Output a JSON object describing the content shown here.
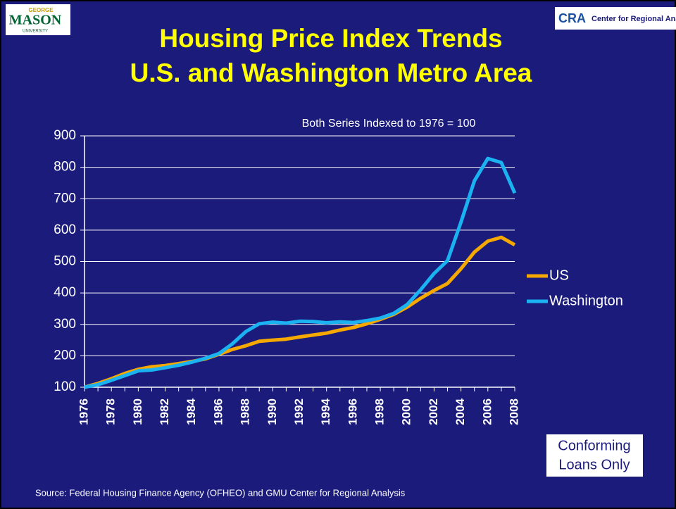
{
  "logos": {
    "left": [
      "GEORGE",
      "MASON",
      "UNIVERSITY"
    ],
    "right": [
      "CRA",
      "Center for Regional Analysis"
    ]
  },
  "chart_data": {
    "type": "line",
    "title": [
      "Housing Price Index Trends",
      "U.S. and Washington Metro Area"
    ],
    "annotation": "Both Series Indexed to 1976 = 100",
    "note": [
      "Conforming",
      "Loans Only"
    ],
    "source": "Source: Federal Housing Finance Agency (OFHEO) and GMU Center for Regional Analysis",
    "categories": [
      "1976",
      "1977",
      "1978",
      "1979",
      "1980",
      "1981",
      "1982",
      "1983",
      "1984",
      "1985",
      "1986",
      "1987",
      "1988",
      "1989",
      "1990",
      "1991",
      "1992",
      "1993",
      "1994",
      "1995",
      "1996",
      "1997",
      "1998",
      "1999",
      "2000",
      "2001",
      "2002",
      "2003",
      "2004",
      "2005",
      "2006",
      "2007",
      "2008"
    ],
    "category_labels_every": 2,
    "series": [
      {
        "name": "US",
        "color": "#f5a800",
        "values": [
          100,
          112,
          127,
          144,
          157,
          165,
          169,
          175,
          182,
          190,
          205,
          220,
          232,
          246,
          250,
          253,
          260,
          266,
          272,
          282,
          290,
          302,
          316,
          332,
          355,
          383,
          408,
          430,
          477,
          530,
          565,
          577,
          553
        ]
      },
      {
        "name": "Washington",
        "color": "#1ab2f0",
        "values": [
          100,
          108,
          122,
          137,
          152,
          155,
          162,
          170,
          180,
          192,
          207,
          238,
          277,
          302,
          307,
          304,
          310,
          309,
          305,
          308,
          306,
          312,
          320,
          335,
          363,
          410,
          462,
          503,
          625,
          757,
          828,
          815,
          718
        ]
      }
    ],
    "ylim": [
      100,
      900
    ],
    "yticks": [
      100,
      200,
      300,
      400,
      500,
      600,
      700,
      800,
      900
    ],
    "grid": true
  }
}
